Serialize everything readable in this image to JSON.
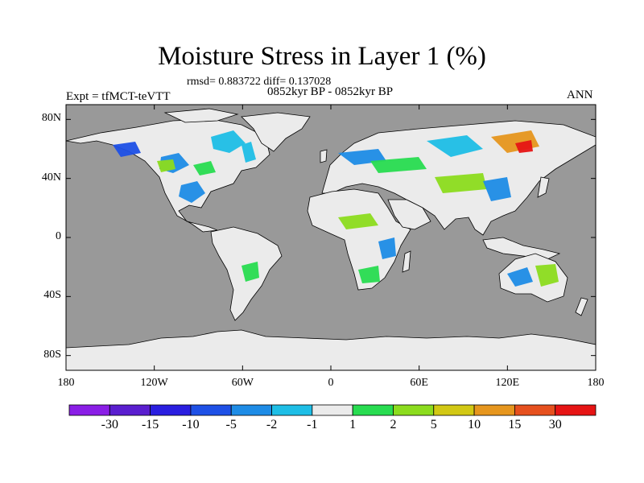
{
  "title": "Moisture Stress in Layer 1 (%)",
  "stats_line": "rmsd= 0.883722 diff= 0.137028",
  "period_line": "0852kyr BP - 0852kyr BP",
  "left_label": "Expt = tfMCT-teVTT",
  "right_label": "ANN",
  "y_ticks": [
    {
      "label": "80N",
      "lat": 80
    },
    {
      "label": "40N",
      "lat": 40
    },
    {
      "label": "0",
      "lat": 0
    },
    {
      "label": "40S",
      "lat": -40
    },
    {
      "label": "80S",
      "lat": -80
    }
  ],
  "x_ticks": [
    {
      "label": "180",
      "lon": -180
    },
    {
      "label": "120W",
      "lon": -120
    },
    {
      "label": "60W",
      "lon": -60
    },
    {
      "label": "0",
      "lon": 0
    },
    {
      "label": "60E",
      "lon": 60
    },
    {
      "label": "120E",
      "lon": 120
    },
    {
      "label": "180",
      "lon": 180
    }
  ],
  "colorbar": {
    "colors": [
      "#8a1ee6",
      "#5a1ecf",
      "#2a1ee0",
      "#1e50e6",
      "#1e8ce6",
      "#1ebee6",
      "#ebebeb",
      "#28dc50",
      "#8cdc1e",
      "#d2c814",
      "#e6961e",
      "#e6501e",
      "#e61414"
    ],
    "labels": [
      "-30",
      "-15",
      "-10",
      "-5",
      "-2",
      "-1",
      "1",
      "2",
      "5",
      "10",
      "15",
      "30"
    ]
  },
  "colors": {
    "ocean": "#999999",
    "land": "#ebebeb",
    "coast": "#000000"
  }
}
